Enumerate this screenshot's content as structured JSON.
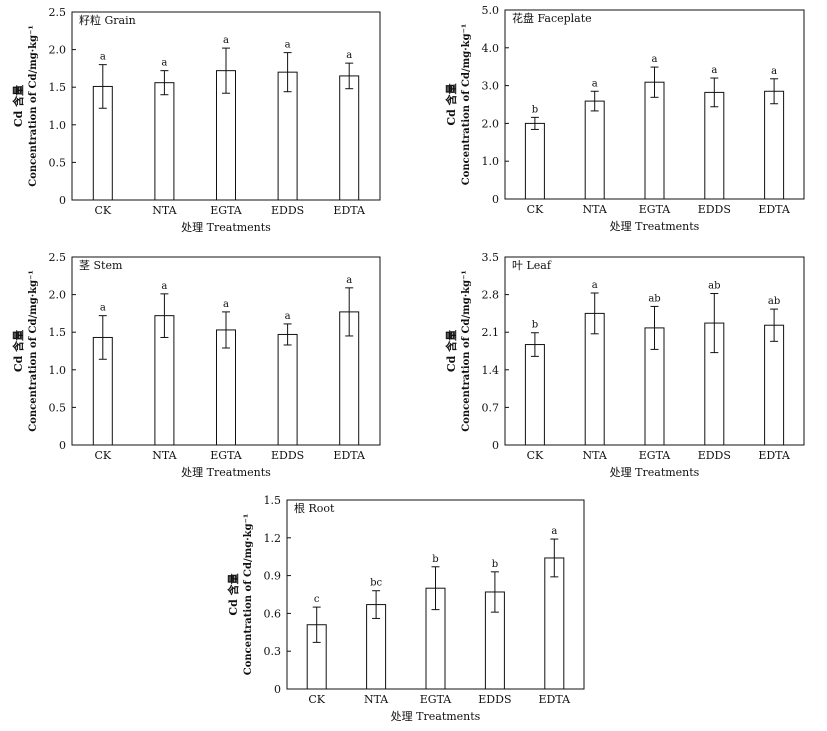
{
  "chart_data": [
    {
      "type": "bar",
      "title": "籽粒 Grain",
      "xlabel": "处理 Treatments",
      "ylabel_cn": "Cd 含量",
      "ylabel_en": "Concentration of Cd/mg·kg⁻¹",
      "categories": [
        "CK",
        "NTA",
        "EGTA",
        "EDDS",
        "EDTA"
      ],
      "values": [
        1.51,
        1.56,
        1.72,
        1.7,
        1.65
      ],
      "errors": [
        0.29,
        0.16,
        0.3,
        0.26,
        0.17
      ],
      "letters": [
        "a",
        "a",
        "a",
        "a",
        "a"
      ],
      "ylim": [
        0,
        2.5
      ],
      "yticks": [
        "0",
        "0.5",
        "1.0",
        "1.5",
        "2.0",
        "2.5"
      ],
      "grid": false,
      "bar_color": "#ffffff"
    },
    {
      "type": "bar",
      "title": "花盘 Faceplate",
      "xlabel": "处理 Treatments",
      "ylabel_cn": "Cd 含量",
      "ylabel_en": "Concentration of Cd/mg·kg⁻¹",
      "categories": [
        "CK",
        "NTA",
        "EGTA",
        "EDDS",
        "EDTA"
      ],
      "values": [
        2.0,
        2.59,
        3.09,
        2.82,
        2.85
      ],
      "errors": [
        0.16,
        0.26,
        0.4,
        0.38,
        0.33
      ],
      "letters": [
        "b",
        "a",
        "a",
        "a",
        "a"
      ],
      "ylim": [
        0,
        5.0
      ],
      "yticks": [
        "0",
        "1.0",
        "2.0",
        "3.0",
        "4.0",
        "5.0"
      ],
      "grid": false,
      "bar_color": "#ffffff"
    },
    {
      "type": "bar",
      "title": "茎 Stem",
      "xlabel": "处理 Treatments",
      "ylabel_cn": "Cd 含量",
      "ylabel_en": "Concentration of Cd/mg·kg⁻¹",
      "categories": [
        "CK",
        "NTA",
        "EGTA",
        "EDDS",
        "EDTA"
      ],
      "values": [
        1.43,
        1.72,
        1.53,
        1.47,
        1.77
      ],
      "errors": [
        0.29,
        0.29,
        0.24,
        0.14,
        0.32
      ],
      "letters": [
        "a",
        "a",
        "a",
        "a",
        "a"
      ],
      "ylim": [
        0,
        2.5
      ],
      "yticks": [
        "0",
        "0.5",
        "1.0",
        "1.5",
        "2.0",
        "2.5"
      ],
      "grid": false,
      "bar_color": "#ffffff"
    },
    {
      "type": "bar",
      "title": "叶 Leaf",
      "xlabel": "处理 Treatments",
      "ylabel_cn": "Cd 含量",
      "ylabel_en": "Concentration of Cd/mg·kg⁻¹",
      "categories": [
        "CK",
        "NTA",
        "EGTA",
        "EDDS",
        "EDTA"
      ],
      "values": [
        1.87,
        2.45,
        2.18,
        2.27,
        2.23
      ],
      "errors": [
        0.22,
        0.38,
        0.4,
        0.55,
        0.3
      ],
      "letters": [
        "b",
        "a",
        "ab",
        "ab",
        "ab"
      ],
      "ylim": [
        0,
        3.5
      ],
      "yticks": [
        "0",
        "0.7",
        "1.4",
        "2.1",
        "2.8",
        "3.5"
      ],
      "grid": false,
      "bar_color": "#ffffff"
    },
    {
      "type": "bar",
      "title": "根 Root",
      "xlabel": "处理 Treatments",
      "ylabel_cn": "Cd 含量",
      "ylabel_en": "Concentration of Cd/mg·kg⁻¹",
      "categories": [
        "CK",
        "NTA",
        "EGTA",
        "EDDS",
        "EDTA"
      ],
      "values": [
        0.51,
        0.67,
        0.8,
        0.77,
        1.04
      ],
      "errors": [
        0.14,
        0.11,
        0.17,
        0.16,
        0.15
      ],
      "letters": [
        "c",
        "bc",
        "b",
        "b",
        "a"
      ],
      "ylim": [
        0,
        1.5
      ],
      "yticks": [
        "0",
        "0.3",
        "0.6",
        "0.9",
        "1.2",
        "1.5"
      ],
      "grid": false,
      "bar_color": "#ffffff"
    }
  ]
}
